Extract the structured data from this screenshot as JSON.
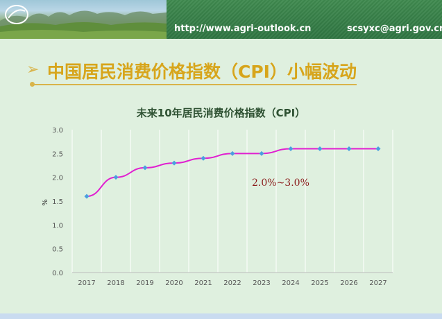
{
  "header": {
    "url": "http://www.agri-outlook.cn",
    "email": "scsyxc@agri.gov.cn",
    "logo_text": "AOC"
  },
  "slide": {
    "bullet_icon": "arrow-bullet-icon",
    "title": "中国居民消费价格指数（CPI）小幅波动"
  },
  "chart_data": {
    "type": "line",
    "title": "未来10年居民消费价格指数（CPI）",
    "ylabel": "%",
    "xlabel": "",
    "categories": [
      "2017",
      "2018",
      "2019",
      "2020",
      "2021",
      "2022",
      "2023",
      "2024",
      "2025",
      "2026",
      "2027"
    ],
    "series": [
      {
        "values": [
          1.6,
          2.0,
          2.2,
          2.3,
          2.4,
          2.5,
          2.5,
          2.6,
          2.6,
          2.6,
          2.6
        ],
        "color": "#e020d0",
        "marker_color": "#4a9ee0"
      }
    ],
    "yticks": [
      "0.0",
      "0.5",
      "1.0",
      "1.5",
      "2.0",
      "2.5",
      "3.0"
    ],
    "ylim": [
      0,
      3.0
    ],
    "grid": "vertical",
    "annotation": "2.0%~3.0%"
  },
  "colors": {
    "accent_gold": "#d7a51b",
    "header_green": "#3f8a4f",
    "background": "#dff0df"
  }
}
